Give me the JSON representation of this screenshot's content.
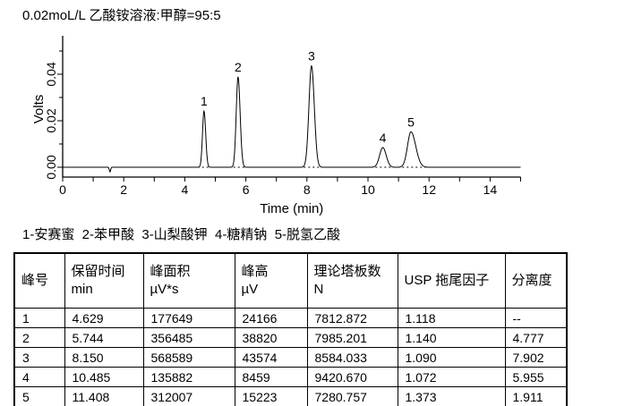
{
  "colors": {
    "ink": "#000000",
    "background": "#ffffff"
  },
  "header": {
    "title": "0.02moL/L 乙酸铵溶液:甲醇=95:5"
  },
  "legend_line": "1-安赛蜜  2-苯甲酸  3-山梨酸钾  4-糖精钠  5-脱氢乙酸",
  "chart_data": {
    "type": "line",
    "title": "",
    "xlabel": "Time (min)",
    "ylabel": "Volts",
    "xlim": [
      0,
      15
    ],
    "x_tick_step": 1,
    "x_label_step": 2,
    "x_tick_labels": [
      "0",
      "2",
      "4",
      "6",
      "8",
      "10",
      "12",
      "14"
    ],
    "ylim_v": [
      -0.0042,
      0.0565
    ],
    "y_major_ticks": [
      {
        "v": 0.0,
        "label": "0.00"
      },
      {
        "v": 0.02,
        "label": "0.02"
      },
      {
        "v": 0.04,
        "label": "0.04"
      }
    ],
    "y_minor_ticks": [
      0.01,
      0.03,
      0.05
    ],
    "baseline_v": 0.0,
    "grid": false,
    "injection_dip": {
      "time_min": 1.55,
      "depth_v": -0.002,
      "sigma_min": 0.022
    },
    "peaks": [
      {
        "label": "1",
        "name": "安赛蜜",
        "rt_min": 4.629,
        "height_v": 0.024166,
        "sigma_min": 0.052,
        "usp_tailing": 1.118
      },
      {
        "label": "2",
        "name": "苯甲酸",
        "rt_min": 5.744,
        "height_v": 0.03882,
        "sigma_min": 0.064,
        "usp_tailing": 1.14
      },
      {
        "label": "3",
        "name": "山梨酸钾",
        "rt_min": 8.15,
        "height_v": 0.043574,
        "sigma_min": 0.088,
        "usp_tailing": 1.09
      },
      {
        "label": "4",
        "name": "糖精钠",
        "rt_min": 10.485,
        "height_v": 0.008459,
        "sigma_min": 0.108,
        "usp_tailing": 1.072
      },
      {
        "label": "5",
        "name": "脱氢乙酸",
        "rt_min": 11.408,
        "height_v": 0.015223,
        "sigma_min": 0.134,
        "usp_tailing": 1.373
      }
    ],
    "dashed_baseline_segments_min": [
      [
        4.42,
        6.12
      ],
      [
        7.75,
        8.65
      ],
      [
        9.95,
        12.35
      ]
    ]
  },
  "table": {
    "columns": [
      {
        "label": "峰号",
        "unit": ""
      },
      {
        "label": "保留时间",
        "unit": "min"
      },
      {
        "label": "峰面积",
        "unit": "µV*s"
      },
      {
        "label": "峰高",
        "unit": "µV"
      },
      {
        "label": "理论塔板数",
        "unit": "N"
      },
      {
        "label": "USP 拖尾因子",
        "unit": ""
      },
      {
        "label": "分离度",
        "unit": ""
      }
    ],
    "rows": [
      [
        "1",
        "4.629",
        "177649",
        "24166",
        "7812.872",
        "1.118",
        "--"
      ],
      [
        "2",
        "5.744",
        "356485",
        "38820",
        "7985.201",
        "1.140",
        "4.777"
      ],
      [
        "3",
        "8.150",
        "568589",
        "43574",
        "8584.033",
        "1.090",
        "7.902"
      ],
      [
        "4",
        "10.485",
        "135882",
        "8459",
        "9420.670",
        "1.072",
        "5.955"
      ],
      [
        "5",
        "11.408",
        "312007",
        "15223",
        "7280.757",
        "1.373",
        "1.911"
      ]
    ]
  }
}
